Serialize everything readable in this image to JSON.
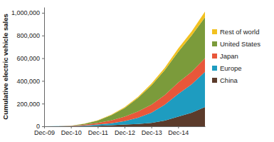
{
  "chart_data": {
    "type": "area",
    "stacked": true,
    "y_label": "Cumulative electric vehicle sales",
    "categories": [
      "Dec-09",
      null,
      "Dec-10",
      null,
      "Dec-11",
      null,
      "Dec-12",
      null,
      "Dec-13",
      null,
      "Dec-14",
      null,
      null
    ],
    "series": [
      {
        "name": "China",
        "color": "#5b3b2b",
        "values": [
          0,
          500,
          1000,
          2000,
          5000,
          9000,
          15000,
          20000,
          30000,
          50000,
          85000,
          120000,
          170000
        ]
      },
      {
        "name": "Europe",
        "color": "#1e9cc0",
        "values": [
          0,
          500,
          1000,
          4000,
          10000,
          18000,
          30000,
          55000,
          90000,
          140000,
          200000,
          250000,
          310000
        ]
      },
      {
        "name": "Japan",
        "color": "#e8573a",
        "values": [
          0,
          500,
          1000,
          8000,
          15000,
          25000,
          40000,
          55000,
          70000,
          85000,
          100000,
          110000,
          120000
        ]
      },
      {
        "name": "United States",
        "color": "#7b9b3b",
        "values": [
          0,
          500,
          1000,
          8000,
          20000,
          45000,
          75000,
          120000,
          170000,
          220000,
          270000,
          320000,
          360000
        ]
      },
      {
        "name": "Rest of world",
        "color": "#f2c11f",
        "values": [
          0,
          200,
          500,
          1500,
          3000,
          5000,
          8000,
          10000,
          15000,
          20000,
          30000,
          35000,
          50000
        ]
      }
    ],
    "ylim": [
      0,
      1050000
    ],
    "yticks": [
      0,
      {
        "value": 200000,
        "label": "200,000"
      },
      {
        "value": 400000,
        "label": "400,000"
      },
      {
        "value": 600000,
        "label": "600,000"
      },
      {
        "value": 800000,
        "label": "800,000"
      },
      {
        "value": 1000000,
        "label": "1,000,000"
      }
    ],
    "grid": false,
    "legend": "right"
  }
}
